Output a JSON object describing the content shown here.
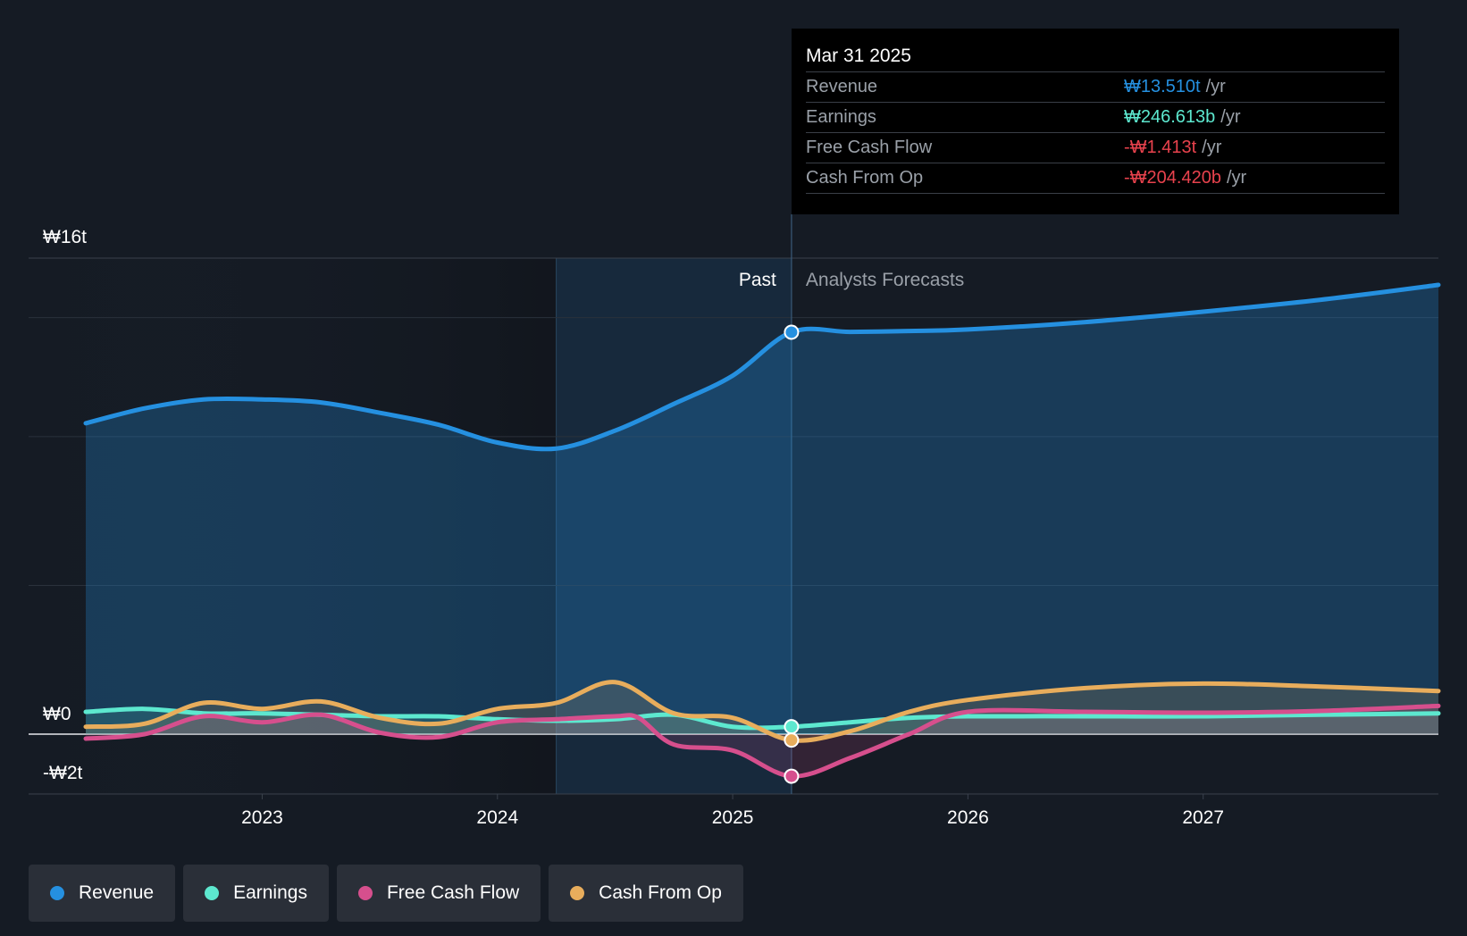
{
  "colors": {
    "background": "#151b24",
    "revenue": "#2590e0",
    "earnings": "#5de8cf",
    "free_cash_flow": "#d64f8d",
    "cash_from_op": "#e8ad5c",
    "negative": "#e8424d"
  },
  "tooltip": {
    "date": "Mar 31 2025",
    "rows": [
      {
        "label": "Revenue",
        "value": "₩13.510t",
        "unit": "/yr",
        "color": "#2590e0"
      },
      {
        "label": "Earnings",
        "value": "₩246.613b",
        "unit": "/yr",
        "color": "#5de8cf"
      },
      {
        "label": "Free Cash Flow",
        "value": "-₩1.413t",
        "unit": "/yr",
        "color": "#e8424d"
      },
      {
        "label": "Cash From Op",
        "value": "-₩204.420b",
        "unit": "/yr",
        "color": "#e8424d"
      }
    ]
  },
  "legend": [
    {
      "label": "Revenue",
      "color": "#2590e0"
    },
    {
      "label": "Earnings",
      "color": "#5de8cf"
    },
    {
      "label": "Free Cash Flow",
      "color": "#d64f8d"
    },
    {
      "label": "Cash From Op",
      "color": "#e8ad5c"
    }
  ],
  "chart_data": {
    "type": "line",
    "y_axis_labels": [
      "₩16t",
      "₩0",
      "-₩2t"
    ],
    "ylim": [
      -2,
      16
    ],
    "xlim": [
      2022.25,
      2028.0
    ],
    "x_ticks": [
      2023,
      2024,
      2025,
      2026,
      2027
    ],
    "x_tick_labels": [
      "2023",
      "2024",
      "2025",
      "2026",
      "2027"
    ],
    "grid": true,
    "past_label": "Past",
    "forecast_label": "Analysts Forecasts",
    "divider_x": 2025.25,
    "highlight_start_x": 2024.25,
    "legend_position": "bottom-left",
    "series": [
      {
        "name": "Revenue",
        "color": "#2590e0",
        "points": [
          [
            2022.25,
            10.45
          ],
          [
            2022.5,
            10.95
          ],
          [
            2022.75,
            11.25
          ],
          [
            2023.0,
            11.25
          ],
          [
            2023.25,
            11.15
          ],
          [
            2023.5,
            10.8
          ],
          [
            2023.75,
            10.4
          ],
          [
            2024.0,
            9.8
          ],
          [
            2024.25,
            9.6
          ],
          [
            2024.5,
            10.2
          ],
          [
            2024.75,
            11.1
          ],
          [
            2025.0,
            12.05
          ],
          [
            2025.25,
            13.51
          ],
          [
            2025.5,
            13.52
          ],
          [
            2025.75,
            13.55
          ],
          [
            2026.0,
            13.6
          ],
          [
            2026.5,
            13.85
          ],
          [
            2027.0,
            14.2
          ],
          [
            2027.5,
            14.6
          ],
          [
            2028.0,
            15.1
          ]
        ]
      },
      {
        "name": "Earnings",
        "color": "#5de8cf",
        "points": [
          [
            2022.25,
            0.75
          ],
          [
            2022.5,
            0.85
          ],
          [
            2022.75,
            0.7
          ],
          [
            2023.0,
            0.7
          ],
          [
            2023.25,
            0.65
          ],
          [
            2023.5,
            0.6
          ],
          [
            2023.75,
            0.6
          ],
          [
            2024.0,
            0.5
          ],
          [
            2024.25,
            0.45
          ],
          [
            2024.5,
            0.5
          ],
          [
            2024.75,
            0.65
          ],
          [
            2025.0,
            0.25
          ],
          [
            2025.25,
            0.25
          ],
          [
            2025.5,
            0.4
          ],
          [
            2025.75,
            0.55
          ],
          [
            2026.0,
            0.6
          ],
          [
            2026.5,
            0.6
          ],
          [
            2027.0,
            0.6
          ],
          [
            2027.5,
            0.65
          ],
          [
            2028.0,
            0.7
          ]
        ]
      },
      {
        "name": "Free Cash Flow",
        "color": "#d64f8d",
        "points": [
          [
            2022.25,
            -0.15
          ],
          [
            2022.5,
            0.0
          ],
          [
            2022.75,
            0.6
          ],
          [
            2023.0,
            0.4
          ],
          [
            2023.25,
            0.65
          ],
          [
            2023.5,
            0.05
          ],
          [
            2023.75,
            -0.1
          ],
          [
            2024.0,
            0.4
          ],
          [
            2024.25,
            0.5
          ],
          [
            2024.5,
            0.6
          ],
          [
            2024.6,
            0.55
          ],
          [
            2024.75,
            -0.35
          ],
          [
            2025.0,
            -0.55
          ],
          [
            2025.25,
            -1.413
          ],
          [
            2025.5,
            -0.8
          ],
          [
            2025.75,
            0.0
          ],
          [
            2026.0,
            0.75
          ],
          [
            2026.5,
            0.75
          ],
          [
            2027.0,
            0.72
          ],
          [
            2027.5,
            0.78
          ],
          [
            2028.0,
            0.95
          ]
        ]
      },
      {
        "name": "Cash From Op",
        "color": "#e8ad5c",
        "points": [
          [
            2022.25,
            0.25
          ],
          [
            2022.5,
            0.35
          ],
          [
            2022.75,
            1.05
          ],
          [
            2023.0,
            0.85
          ],
          [
            2023.25,
            1.1
          ],
          [
            2023.5,
            0.55
          ],
          [
            2023.75,
            0.35
          ],
          [
            2024.0,
            0.85
          ],
          [
            2024.25,
            1.05
          ],
          [
            2024.5,
            1.75
          ],
          [
            2024.75,
            0.7
          ],
          [
            2025.0,
            0.55
          ],
          [
            2025.25,
            -0.2
          ],
          [
            2025.5,
            0.1
          ],
          [
            2025.75,
            0.75
          ],
          [
            2026.0,
            1.15
          ],
          [
            2026.5,
            1.55
          ],
          [
            2027.0,
            1.7
          ],
          [
            2027.5,
            1.6
          ],
          [
            2028.0,
            1.45
          ]
        ]
      }
    ]
  }
}
